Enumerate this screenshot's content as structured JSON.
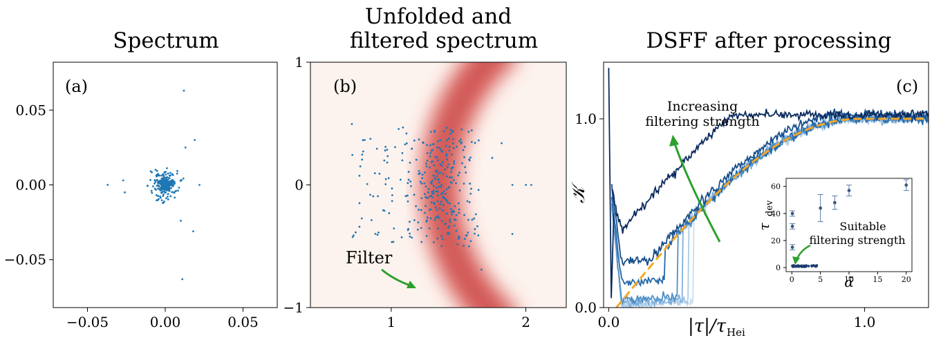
{
  "chart_data": [
    {
      "type": "scatter",
      "panel_label": "(a)",
      "title": "Spectrum",
      "xlim": [
        -0.072,
        0.072
      ],
      "ylim": [
        -0.082,
        0.082
      ],
      "xticks": [
        -0.05,
        0.0,
        0.05
      ],
      "xtick_labels": [
        "−0.05",
        "0.00",
        "0.05"
      ],
      "yticks": [
        -0.05,
        0.0,
        0.05
      ],
      "ytick_labels": [
        "−0.05",
        "0.00",
        "0.05"
      ],
      "point_color": "#1f77b4",
      "sample_points": [
        [
          0.012,
          0.063
        ],
        [
          0.019,
          0.03
        ],
        [
          -0.027,
          0.003
        ],
        [
          -0.037,
          0.0
        ],
        [
          0.013,
          0.025
        ],
        [
          0.01,
          -0.024
        ],
        [
          0.018,
          -0.031
        ],
        [
          0.011,
          -0.063
        ],
        [
          0.022,
          0.0
        ],
        [
          -0.026,
          -0.005
        ]
      ]
    },
    {
      "type": "scatter",
      "panel_label": "(b)",
      "title_lines": [
        "Unfolded and",
        "filtered spectrum"
      ],
      "xlim": [
        0.4,
        2.3
      ],
      "ylim": [
        -1.0,
        1.0
      ],
      "xticks": [
        1,
        2
      ],
      "xtick_labels": [
        "1",
        "2"
      ],
      "yticks": [
        -1,
        0,
        1
      ],
      "ytick_labels": [
        "−1",
        "0",
        "1"
      ],
      "point_color": "#1f77b4",
      "filter_color": "#d9534f",
      "filter_label": "Filter",
      "filter_arc_center": [
        2.94,
        0.0
      ],
      "filter_arc_radius": 1.58
    },
    {
      "type": "line",
      "panel_label": "(c)",
      "title": "DSFF after processing",
      "xlabel": "|τ|/τ",
      "xlabel_sub": "Hei",
      "ylabel": "𝒦",
      "xlim": [
        -0.02,
        1.25
      ],
      "ylim": [
        0.0,
        1.3
      ],
      "xticks": [
        0.0,
        1.0
      ],
      "xtick_labels": [
        "0.0",
        "1.0"
      ],
      "yticks": [
        0.0,
        1.0
      ],
      "ytick_labels": [
        "0.0",
        "1.0"
      ],
      "reference_color": "#f5a623",
      "annotation_increase": [
        "Increasing",
        "filtering strength"
      ],
      "series": [
        {
          "color": "#0a2a5e",
          "plateau": 0.5,
          "x0": 0.0
        },
        {
          "color": "#154d8a",
          "plateau": 0.24,
          "x0": 0.15
        },
        {
          "color": "#2468a8",
          "plateau": 0.13,
          "x0": 0.22
        },
        {
          "color": "#4f8fc7",
          "plateau": 0.04,
          "x0": 0.27
        },
        {
          "color": "#7fb0dc",
          "plateau": 0.02,
          "x0": 0.29
        },
        {
          "color": "#a9cbe8",
          "plateau": 0.01,
          "x0": 0.31
        },
        {
          "color": "#c9ddf0",
          "plateau": 0.005,
          "x0": 0.33
        }
      ],
      "inset": {
        "type": "scatter",
        "xlabel": "α̃",
        "ylabel": "τ",
        "ylabel_sub": "dev",
        "xlim": [
          -1,
          21
        ],
        "ylim": [
          -3,
          66
        ],
        "xticks": [
          0,
          5,
          10,
          15,
          20
        ],
        "xtick_labels": [
          "0",
          "5",
          "10",
          "15",
          "20"
        ],
        "yticks": [
          0,
          20,
          40,
          60
        ],
        "ytick_labels": [
          "0",
          "20",
          "40",
          "60"
        ],
        "annotation_suitable": [
          "Suitable",
          "filtering strength"
        ],
        "points": [
          {
            "x": 0.1,
            "y": 40,
            "err": 2
          },
          {
            "x": 0.1,
            "y": 30.5,
            "err": 2
          },
          {
            "x": 0.1,
            "y": 15,
            "err": 2
          },
          {
            "x": 5.0,
            "y": 44,
            "err": 10
          },
          {
            "x": 7.5,
            "y": 48,
            "err": 5
          },
          {
            "x": 10.0,
            "y": 57,
            "err": 4
          },
          {
            "x": 20.0,
            "y": 61,
            "err": 4
          }
        ]
      }
    }
  ]
}
